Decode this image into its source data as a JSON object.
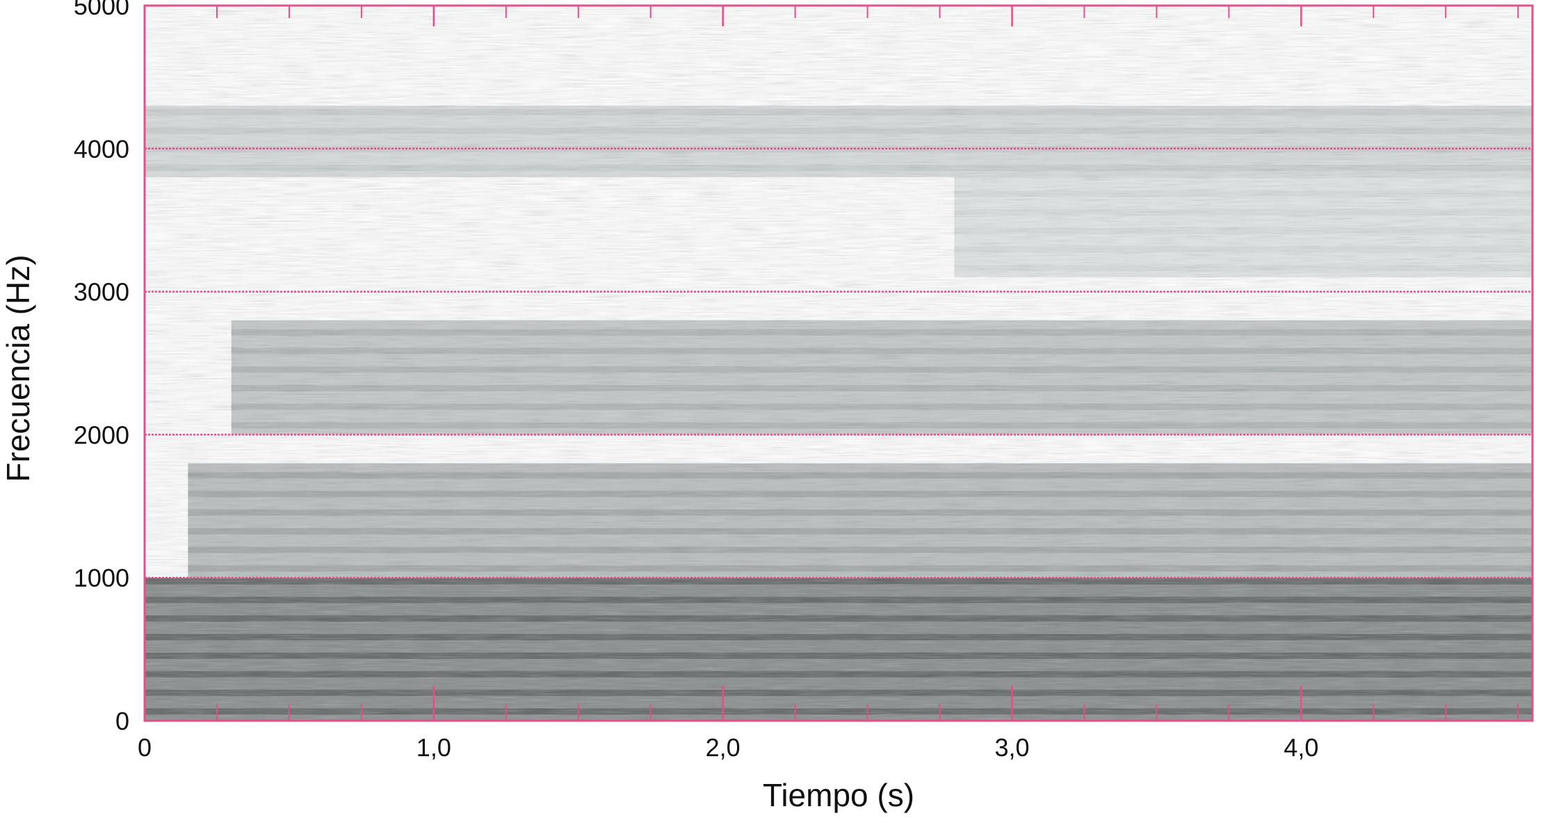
{
  "chart_data": {
    "type": "heatmap",
    "subtype": "spectrogram",
    "title": "",
    "xlabel": "Tiempo (s)",
    "ylabel": "Frecuencia (Hz)",
    "xlim": [
      0,
      4.8
    ],
    "ylim": [
      0,
      5000
    ],
    "x_ticks": [
      {
        "value": 0,
        "label": "0"
      },
      {
        "value": 1,
        "label": "1,0"
      },
      {
        "value": 2,
        "label": "2,0"
      },
      {
        "value": 3,
        "label": "3,0"
      },
      {
        "value": 4,
        "label": "4,0"
      }
    ],
    "y_ticks": [
      {
        "value": 0,
        "label": "0"
      },
      {
        "value": 1000,
        "label": "1000"
      },
      {
        "value": 2000,
        "label": "2000"
      },
      {
        "value": 3000,
        "label": "3000"
      },
      {
        "value": 4000,
        "label": "4000"
      },
      {
        "value": 5000,
        "label": "5000"
      }
    ],
    "grid": true,
    "gridline_color": "#e0508a",
    "frame_color": "#e0508a",
    "colormap": "grayscale (white = low energy, dark gray = high energy)",
    "energy_bands": [
      {
        "freq_min": 0,
        "freq_max": 1000,
        "time_start": 0.0,
        "time_end": 4.8,
        "intensity": 0.6
      },
      {
        "freq_min": 1000,
        "freq_max": 1800,
        "time_start": 0.15,
        "time_end": 4.8,
        "intensity": 0.35
      },
      {
        "freq_min": 2000,
        "freq_max": 2800,
        "time_start": 0.3,
        "time_end": 4.8,
        "intensity": 0.3
      },
      {
        "freq_min": 3100,
        "freq_max": 4000,
        "time_start": 2.8,
        "time_end": 4.8,
        "intensity": 0.15
      },
      {
        "freq_min": 3800,
        "freq_max": 4300,
        "time_start": 0.0,
        "time_end": 4.8,
        "intensity": 0.2
      }
    ]
  }
}
